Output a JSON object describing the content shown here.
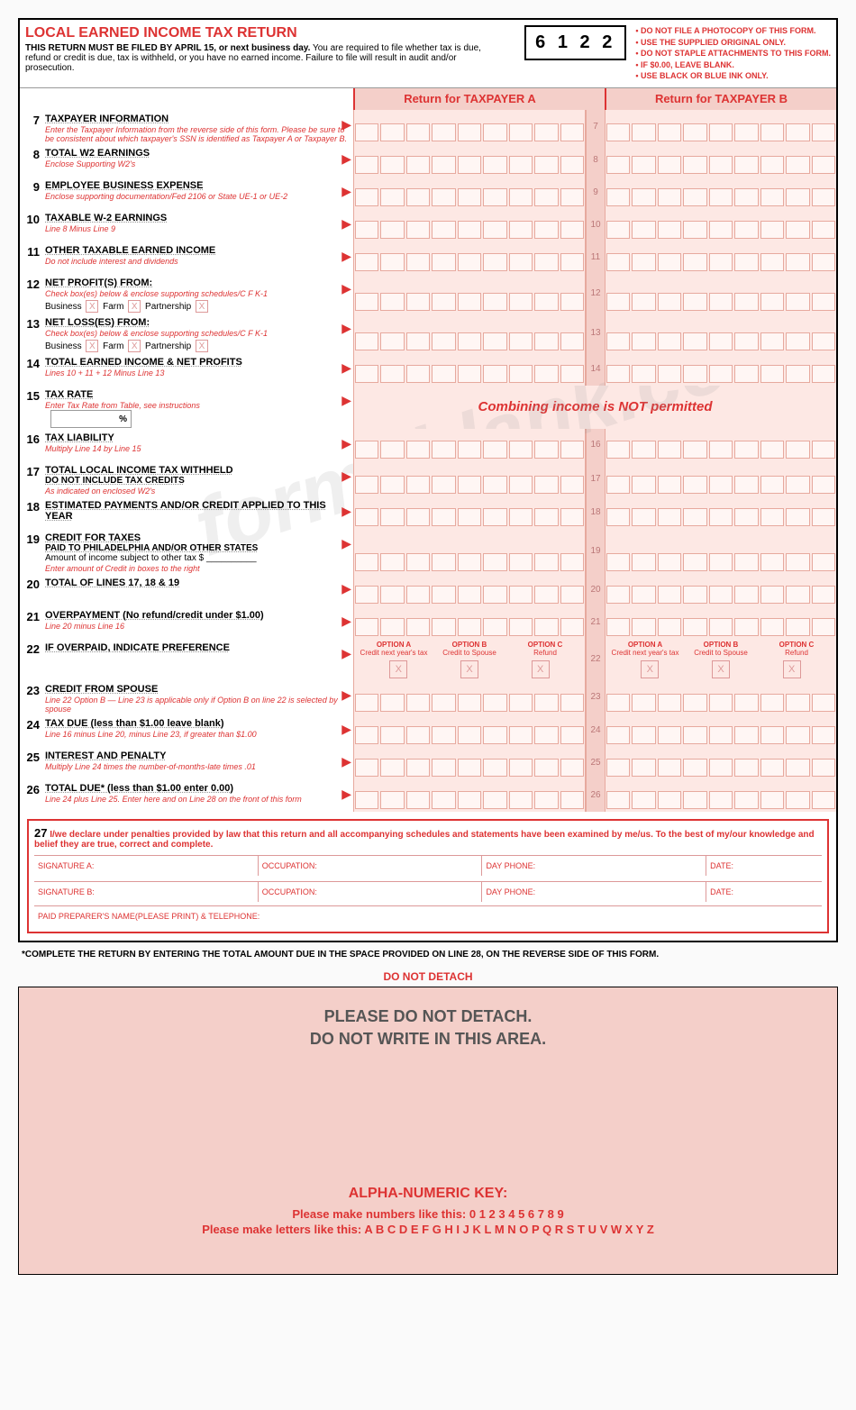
{
  "header": {
    "title": "LOCAL EARNED INCOME TAX RETURN",
    "filing_bold": "THIS RETURN MUST BE FILED BY APRIL 15, or next business day.",
    "filing_rest": " You are required to file whether tax is due, refund or credit is due, tax is withheld, or you have no earned income. Failure to file will result in audit and/or prosecution.",
    "code": "6 1 2 2",
    "warnings": [
      "• DO NOT FILE A PHOTOCOPY OF THIS FORM.",
      "• USE THE SUPPLIED ORIGINAL ONLY.",
      "• DO NOT STAPLE ATTACHMENTS TO THIS FORM.",
      "• IF $0.00, LEAVE BLANK.",
      "• USE BLACK OR BLUE INK ONLY."
    ]
  },
  "columns": {
    "a": "Return for TAXPAYER A",
    "b": "Return for TAXPAYER B"
  },
  "lines": {
    "l7": {
      "num": "7",
      "label": "TAXPAYER INFORMATION",
      "sub": "Enter the Taxpayer Information from the reverse side of this form. Please be sure to be consistent about which taxpayer's SSN is identified as Taxpayer A or Taxpayer B."
    },
    "l8": {
      "num": "8",
      "label": "TOTAL W2 EARNINGS",
      "sub": "Enclose Supporting W2's"
    },
    "l9": {
      "num": "9",
      "label": "EMPLOYEE BUSINESS EXPENSE",
      "sub": "Enclose supporting documentation/Fed 2106 or State UE-1 or UE-2"
    },
    "l10": {
      "num": "10",
      "label": "TAXABLE W-2 EARNINGS",
      "sub": "Line 8 Minus Line 9"
    },
    "l11": {
      "num": "11",
      "label": "OTHER TAXABLE EARNED INCOME",
      "sub": "Do not include interest and dividends"
    },
    "l12": {
      "num": "12",
      "label": "NET PROFIT(S) FROM:",
      "sub": "Check box(es) below & enclose supporting schedules/C F K-1",
      "cb": "Business  Farm  Partnership"
    },
    "l13": {
      "num": "13",
      "label": "NET LOSS(ES) FROM:",
      "sub": "Check box(es) below & enclose supporting schedules/C F K-1",
      "cb": "Business  Farm  Partnership"
    },
    "l14": {
      "num": "14",
      "label": "TOTAL EARNED INCOME & NET PROFITS",
      "sub": "Lines 10 + 11 + 12 Minus Line 13"
    },
    "l15": {
      "num": "15",
      "label": "TAX RATE",
      "sub": "Enter Tax Rate from Table, see instructions",
      "pct": "%"
    },
    "l16": {
      "num": "16",
      "label": "TAX LIABILITY",
      "sub": "Multiply Line 14 by Line 15"
    },
    "l17": {
      "num": "17",
      "label": "TOTAL LOCAL INCOME TAX WITHHELD",
      "label2": "DO NOT INCLUDE TAX CREDITS",
      "sub": "As indicated on enclosed W2's"
    },
    "l18": {
      "num": "18",
      "label": "ESTIMATED PAYMENTS AND/OR CREDIT APPLIED TO THIS YEAR"
    },
    "l19": {
      "num": "19",
      "label": "CREDIT FOR TAXES",
      "sub": "Enter amount of Credit in boxes to the right",
      "label2": "PAID TO PHILADELPHIA AND/OR OTHER STATES",
      "label3": "Amount of income subject to other tax $"
    },
    "l20": {
      "num": "20",
      "label": "TOTAL OF LINES 17, 18 & 19"
    },
    "l21": {
      "num": "21",
      "label": "OVERPAYMENT (No refund/credit under $1.00)",
      "sub": "Line 20 minus Line 16"
    },
    "l22": {
      "num": "22",
      "label": "IF OVERPAID, INDICATE PREFERENCE"
    },
    "l23": {
      "num": "23",
      "label": "CREDIT FROM SPOUSE",
      "sub": "Line 22 Option B — Line 23 is applicable only if Option B on line 22 is selected by spouse"
    },
    "l24": {
      "num": "24",
      "label": "TAX DUE (less than $1.00 leave blank)",
      "sub": "Line 16 minus Line 20, minus Line 23, if greater than $1.00"
    },
    "l25": {
      "num": "25",
      "label": "INTEREST AND PENALTY",
      "sub": "Multiply Line 24 times the number-of-months-late times .01"
    },
    "l26": {
      "num": "26",
      "label": "TOTAL DUE* (less than $1.00 enter 0.00)",
      "sub": "Line 24 plus Line 25. Enter here and on Line 28 on the front of this form"
    }
  },
  "combine_msg": "Combining income is NOT permitted",
  "options": {
    "a": {
      "title": "OPTION A",
      "sub": "Credit next year's tax"
    },
    "b": {
      "title": "OPTION B",
      "sub": "Credit to Spouse"
    },
    "c": {
      "title": "OPTION C",
      "sub": "Refund"
    }
  },
  "declaration": {
    "num": "27",
    "text": "I/we declare under penalties provided by law that this return and all accompanying schedules and statements have been examined by me/us. To the best of my/our knowledge and belief they are true, correct and complete.",
    "sig_a": "SIGNATURE A:",
    "sig_b": "SIGNATURE B:",
    "occ": "OCCUPATION:",
    "phone": "DAY PHONE:",
    "date": "DATE:",
    "preparer": "PAID PREPARER'S NAME(PLEASE PRINT) & TELEPHONE:"
  },
  "footnote": "*COMPLETE THE RETURN BY ENTERING THE TOTAL AMOUNT DUE IN THE SPACE PROVIDED ON LINE 28, ON THE REVERSE SIDE OF THIS FORM.",
  "detach": "DO NOT DETACH",
  "bottom": {
    "msg1": "PLEASE DO NOT DETACH.",
    "msg2": "DO NOT WRITE IN THIS AREA.",
    "key_title": "ALPHA-NUMERIC KEY:",
    "num_line": "Please make numbers like this: 0 1 2 3 4 5 6 7 8 9",
    "alpha_line": "Please make letters like this: A B C D E F G H I J K L M N O P Q R S T U V W X Y Z"
  },
  "watermark": "formsblank.com",
  "colors": {
    "red": "#d33",
    "pink_bg": "#fde8e4",
    "pink_hdr": "#f4cfc9",
    "border": "#e7a99e"
  }
}
